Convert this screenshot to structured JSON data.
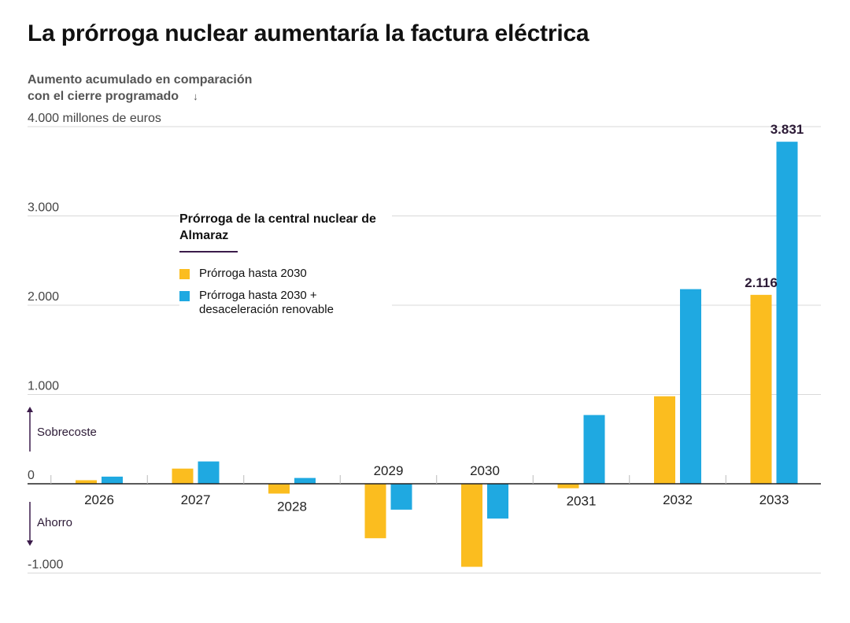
{
  "header": {
    "title": "La prórroga nuclear aumentaría la factura eléctrica",
    "subtitle_line1": "Aumento acumulado en comparación",
    "subtitle_line2": "con el cierre programado",
    "subtitle_arrow": "↓"
  },
  "legend": {
    "title": "Prórroga de la central nuclear de Almaraz"
  },
  "annotations": {
    "sobrecoste": "Sobrecoste",
    "ahorro": "Ahorro"
  },
  "colors": {
    "series1": "#fbbd1f",
    "series2": "#1fa9e1",
    "grid": "#d9d9d9",
    "axis": "#222222",
    "arrow": "#3b1b4a",
    "label_dark": "#2c1a36"
  },
  "chart_data": {
    "type": "bar",
    "title": "La prórroga nuclear aumentaría la factura eléctrica",
    "ylabel": "Aumento acumulado en comparación con el cierre programado",
    "unit": "millones de euros",
    "ylim": [
      -1000,
      4000
    ],
    "yticks": [
      -1000,
      0,
      1000,
      2000,
      3000,
      4000
    ],
    "ytick_labels": [
      "-1.000",
      "0",
      "1.000",
      "2.000",
      "3.000",
      "4.000 millones de euros"
    ],
    "grid": true,
    "legend_position": "top-left",
    "categories": [
      "2026",
      "2027",
      "2028",
      "2029",
      "2030",
      "2031",
      "2032",
      "2033"
    ],
    "series": [
      {
        "name": "Prórroga hasta 2030",
        "values": [
          40,
          170,
          -110,
          -610,
          -930,
          -50,
          980,
          2116
        ]
      },
      {
        "name": "Prórroga hasta 2030 + desaceleración renovable",
        "values": [
          80,
          250,
          65,
          -290,
          -390,
          770,
          2180,
          3831
        ]
      }
    ],
    "data_labels": [
      {
        "series": 0,
        "category": "2033",
        "text": "2.116"
      },
      {
        "series": 1,
        "category": "2033",
        "text": "3.831"
      }
    ]
  }
}
